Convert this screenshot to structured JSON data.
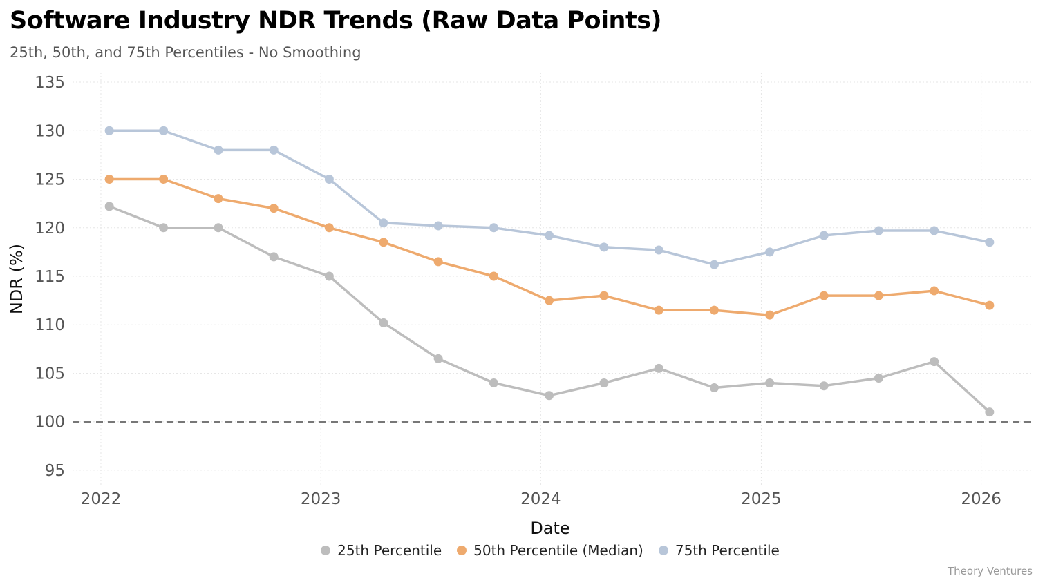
{
  "chart_data": {
    "type": "line",
    "title": "Software Industry NDR Trends (Raw Data Points)",
    "subtitle": "25th, 50th, and 75th Percentiles - No Smoothing",
    "xlabel": "Date",
    "ylabel": "NDR (%)",
    "ylim": [
      93.5,
      136
    ],
    "xlim": [
      "2021-11-15",
      "2026-03-25"
    ],
    "yticks": [
      95,
      100,
      105,
      110,
      115,
      120,
      125,
      130,
      135
    ],
    "xticks": [
      "2022",
      "2023",
      "2024",
      "2025",
      "2026"
    ],
    "x": [
      "2022-01-15",
      "2022-04-15",
      "2022-07-15",
      "2022-10-15",
      "2023-01-15",
      "2023-04-15",
      "2023-07-15",
      "2023-10-15",
      "2024-01-15",
      "2024-04-15",
      "2024-07-15",
      "2024-10-15",
      "2025-01-15",
      "2025-04-15",
      "2025-07-15",
      "2025-10-15",
      "2026-01-15"
    ],
    "series": [
      {
        "name": "25th Percentile",
        "color": "#bdbdbd",
        "values": [
          122.2,
          120,
          120,
          117,
          115,
          110.2,
          106.5,
          104,
          102.7,
          104,
          105.5,
          103.5,
          104,
          103.7,
          104.5,
          106.2,
          101
        ]
      },
      {
        "name": "50th Percentile (Median)",
        "color": "#eeaa6e",
        "values": [
          125,
          125,
          123,
          122,
          120,
          118.5,
          116.5,
          115,
          112.5,
          113,
          111.5,
          111.5,
          111,
          113,
          113,
          113.5,
          112
        ]
      },
      {
        "name": "75th Percentile",
        "color": "#b8c6d9",
        "values": [
          130,
          130,
          128,
          128,
          125,
          120.5,
          120.2,
          120,
          119.2,
          118,
          117.7,
          116.2,
          117.5,
          119.2,
          119.7,
          119.7,
          118.5
        ]
      }
    ],
    "reference_line": {
      "y": 100,
      "style": "dashed",
      "color": "#777777"
    },
    "grid": true,
    "legend_position": "bottom"
  },
  "credit": "Theory Ventures"
}
